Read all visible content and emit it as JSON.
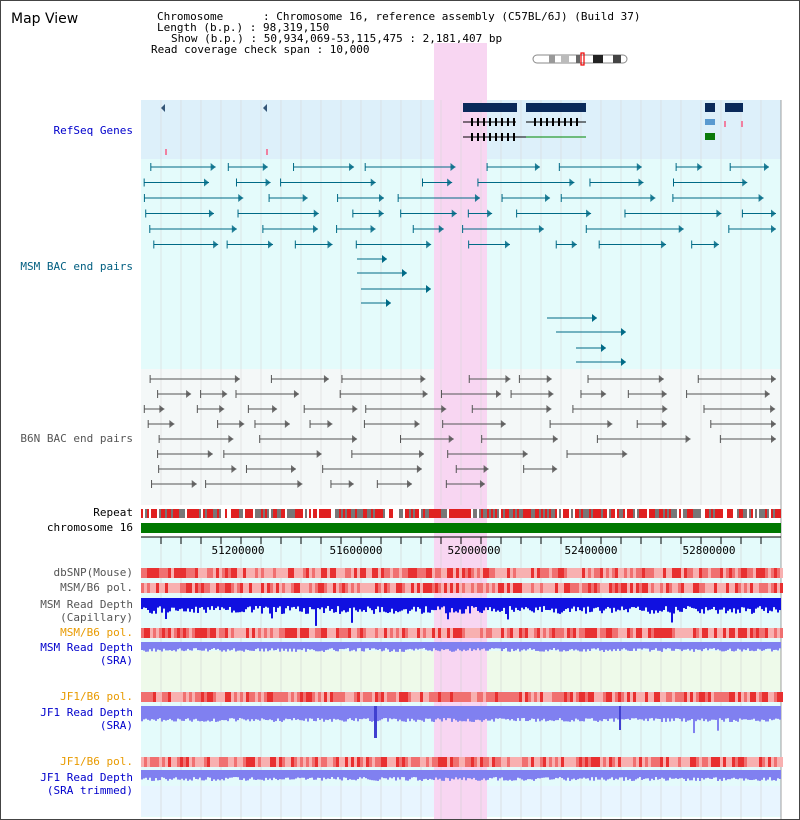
{
  "view_title": "Map View",
  "info": {
    "chromosome": "Chromosome      : Chromosome 16, reference assembly (C57BL/6J) (Build 37)",
    "length": "Length (b.p.) : 98,319,150",
    "show": "Show (b.p.) : 50,934,069-53,115,475 : 2,181,407 bp",
    "span": "Read coverage check span : 10,000"
  },
  "tracks": {
    "refseq": "RefSeq Genes",
    "msm_bac": "MSM BAC end pairs",
    "b6n_bac": "B6N BAC end pairs",
    "repeat": "Repeat",
    "chromosome": "chromosome 16",
    "dbsnp": "dbSNP(Mouse)",
    "msm_b6_pol_1": "MSM/B6 pol.",
    "msm_depth_cap_1": "MSM Read Depth",
    "msm_depth_cap_2": "(Capillary)",
    "msm_b6_pol_2": "MSM/B6 pol.",
    "msm_depth_sra_1": "MSM Read Depth",
    "msm_depth_sra_2": "(SRA)",
    "jf1_b6_pol_1": "JF1/B6 pol.",
    "jf1_depth_sra_1": "JF1 Read Depth",
    "jf1_depth_sra_2": "(SRA)",
    "jf1_b6_pol_2": "JF1/B6 pol.",
    "jf1_depth_trim_1": "JF1 Read Depth",
    "jf1_depth_trim_2": "(SRA trimmed)"
  },
  "ruler": {
    "ticks": [
      "51200000",
      "51600000",
      "52000000",
      "52400000",
      "52800000"
    ]
  },
  "colors": {
    "refseq_bg": "#ddf0fa",
    "bac_bg": "#e4fbfb",
    "b6n_bg": "#f4f8f8",
    "highlight": "#f8d6f2",
    "msm_bac": "#006a86",
    "b6n_bac": "#555555",
    "chrom": "#007800",
    "depth_blue": "#1010e0",
    "depth_light": "#8080f0",
    "pol": "#f06060"
  }
}
